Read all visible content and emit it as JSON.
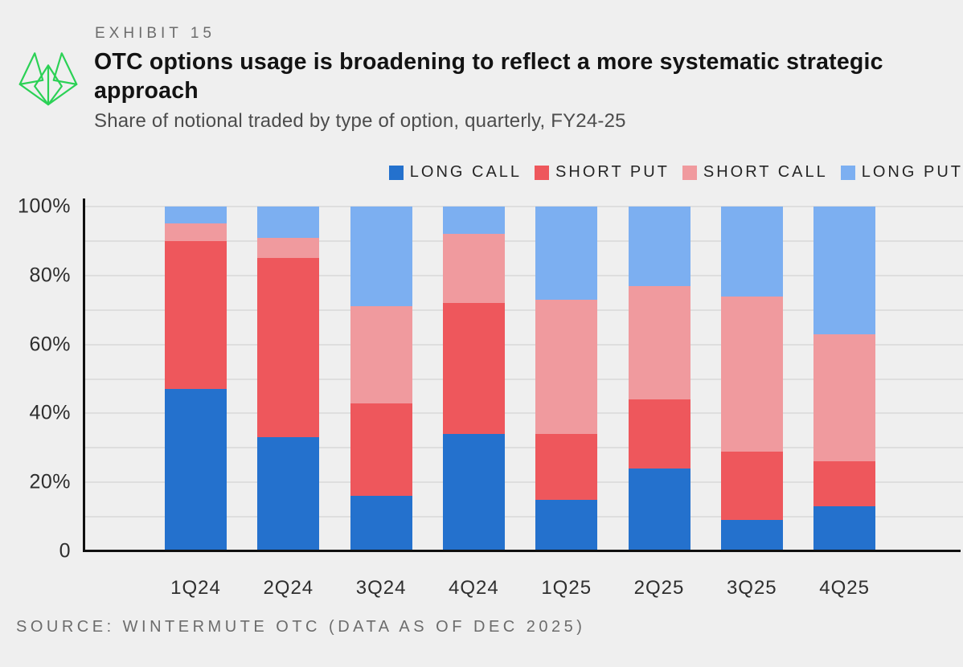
{
  "page": {
    "background": "#efefef"
  },
  "header": {
    "exhibit_label": "EXHIBIT 15",
    "title": "OTC options usage is broadening to reflect a more systematic strategic approach",
    "subtitle": "Share of notional traded by type of option, quarterly, FY24-25",
    "logo_color": "#2bd155"
  },
  "legend": [
    {
      "label": "LONG CALL",
      "color": "#2471cd"
    },
    {
      "label": "SHORT PUT",
      "color": "#ee575c"
    },
    {
      "label": "SHORT CALL",
      "color": "#f09a9e"
    },
    {
      "label": "LONG PUT",
      "color": "#7caff1"
    }
  ],
  "chart_data": {
    "type": "bar",
    "stacked": true,
    "unit": "percent",
    "categories": [
      "1Q24",
      "2Q24",
      "3Q24",
      "4Q24",
      "1Q25",
      "2Q25",
      "3Q25",
      "4Q25"
    ],
    "series": [
      {
        "name": "LONG CALL",
        "color": "#2471cd",
        "values": [
          47,
          33,
          16,
          34,
          15,
          24,
          9,
          13
        ]
      },
      {
        "name": "SHORT PUT",
        "color": "#ee575c",
        "values": [
          43,
          52,
          27,
          38,
          19,
          20,
          20,
          13
        ]
      },
      {
        "name": "SHORT CALL",
        "color": "#f09a9e",
        "values": [
          5,
          6,
          28,
          20,
          39,
          33,
          45,
          37
        ]
      },
      {
        "name": "LONG PUT",
        "color": "#7caff1",
        "values": [
          5,
          9,
          29,
          8,
          27,
          23,
          26,
          37
        ]
      }
    ],
    "ylim": [
      0,
      100
    ],
    "grid_step": 10,
    "y_ticks": [
      {
        "value": 0,
        "label": "0"
      },
      {
        "value": 20,
        "label": "20%"
      },
      {
        "value": 40,
        "label": "40%"
      },
      {
        "value": 60,
        "label": "60%"
      },
      {
        "value": 80,
        "label": "80%"
      },
      {
        "value": 100,
        "label": "100%"
      }
    ],
    "legend_position": "top-right",
    "grid": true
  },
  "source": "SOURCE: WINTERMUTE OTC (DATA AS OF DEC 2025)",
  "colors": {
    "background": "#efefef",
    "grid_line": "#dedede",
    "axis": "#101010",
    "title_text": "#131313",
    "subtitle_text": "#4c4c4c",
    "muted_text": "#6c6c6c",
    "tick_text": "#2e2e2e"
  }
}
